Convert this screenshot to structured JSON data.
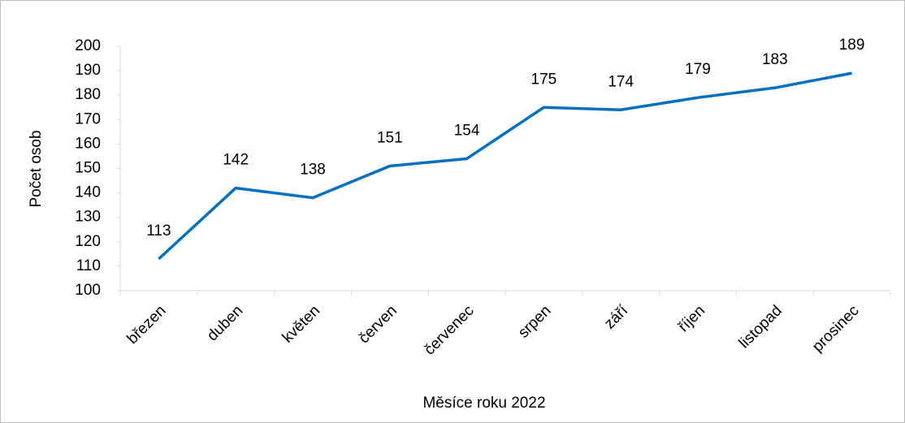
{
  "chart_data": {
    "type": "line",
    "categories": [
      "březen",
      "duben",
      "květen",
      "červen",
      "červenec",
      "srpen",
      "září",
      "říjen",
      "listopad",
      "prosinec"
    ],
    "series": [
      {
        "name": "Počet osob",
        "color": "#0070c0",
        "values": [
          113,
          142,
          138,
          151,
          154,
          175,
          174,
          179,
          183,
          189
        ]
      }
    ],
    "ylim": [
      100,
      200
    ],
    "yticks": [
      100,
      110,
      120,
      130,
      140,
      150,
      160,
      170,
      180,
      190,
      200
    ],
    "ylabel": "Počet osob",
    "xlabel": "Měsíce roku 2022",
    "grid": false,
    "data_labels": true
  }
}
